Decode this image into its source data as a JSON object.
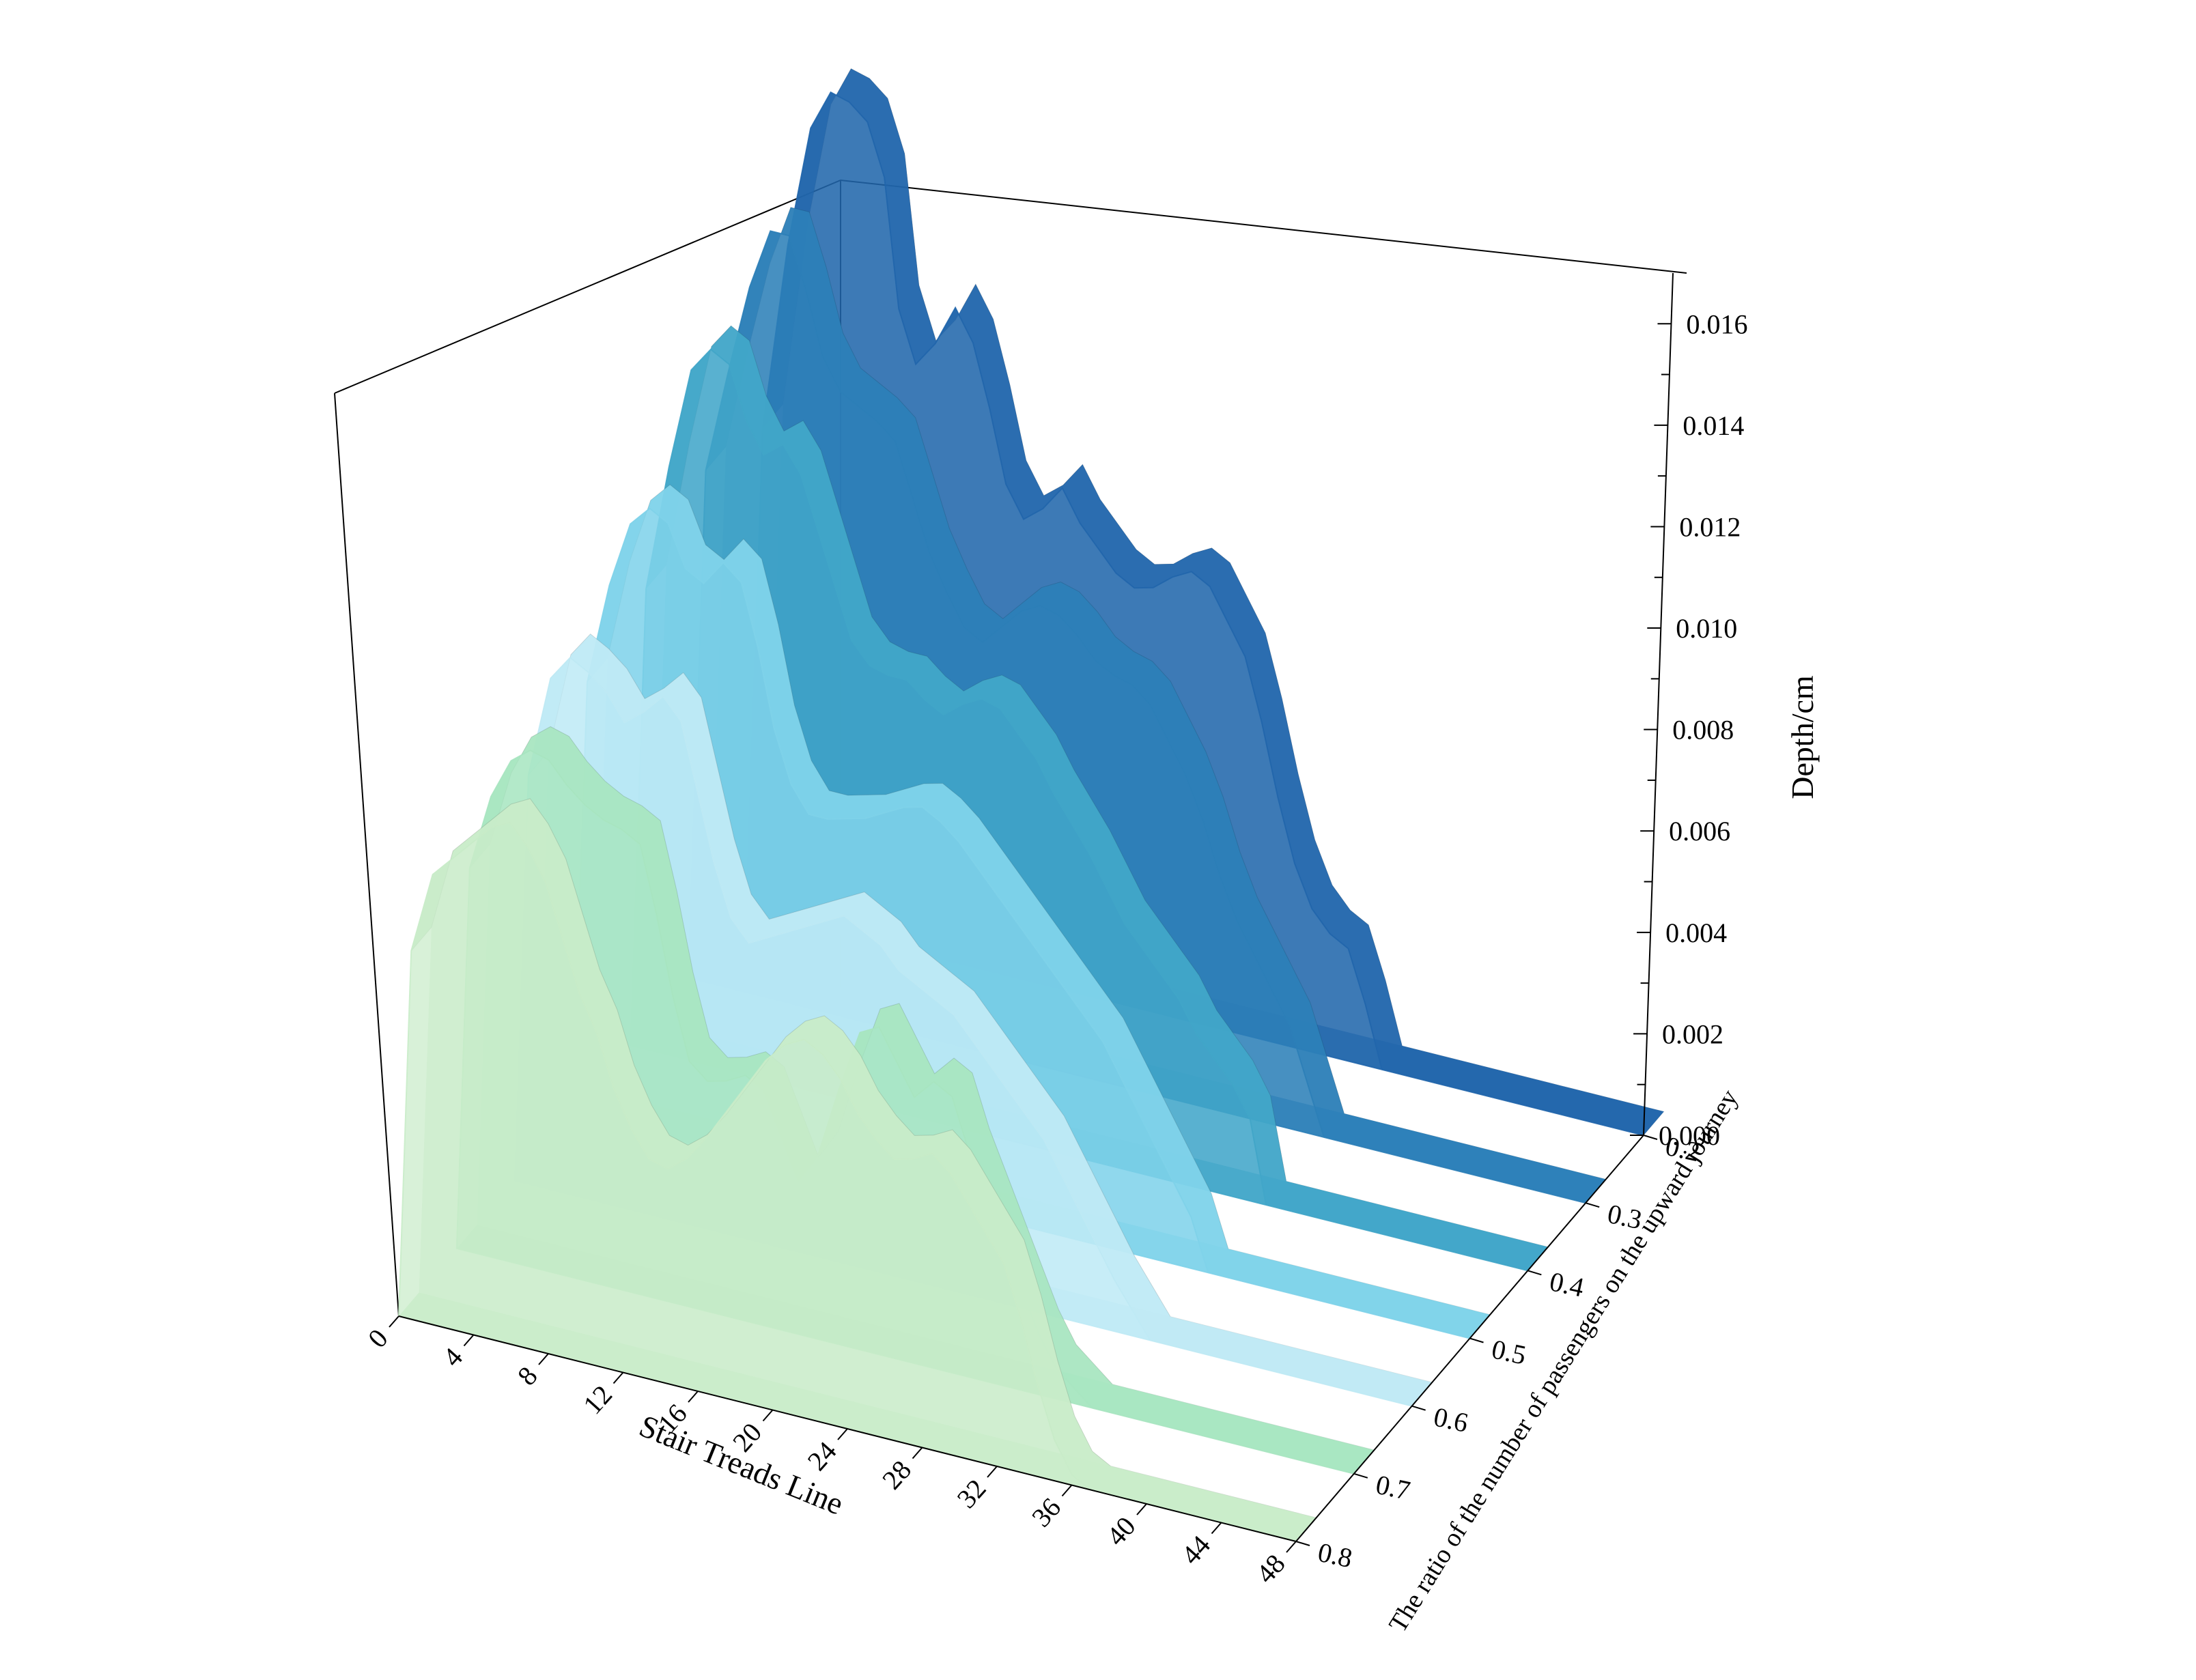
{
  "chart_data": {
    "type": "area",
    "projection": "3d",
    "zlabel": "Depth/cm",
    "xlabel": "Stair Treads Line",
    "ylabel": "The ratio of the number of passengers on the upward journey",
    "x_ticks": [
      0,
      4,
      8,
      12,
      16,
      20,
      24,
      28,
      32,
      36,
      40,
      44,
      48
    ],
    "y_ticks": [
      "0.2",
      "0.3",
      "0.4",
      "0.5",
      "0.6",
      "0.7",
      "0.8"
    ],
    "z_ticks": [
      "0.000",
      "0.002",
      "0.004",
      "0.006",
      "0.008",
      "0.010",
      "0.012",
      "0.014",
      "0.016"
    ],
    "xlim": [
      0,
      48
    ],
    "zlim": [
      0,
      0.017
    ],
    "grid": false,
    "legend": "none",
    "x": [
      0,
      1,
      2,
      3,
      4,
      5,
      6,
      7,
      8,
      9,
      10,
      11,
      12,
      13,
      14,
      15,
      16,
      17,
      18,
      19,
      20,
      21,
      22,
      23,
      24,
      25,
      26,
      27,
      28,
      29,
      30,
      31,
      32,
      33,
      34,
      35,
      36,
      37,
      38,
      39,
      40,
      41,
      42,
      43,
      44,
      45,
      46,
      47,
      48
    ],
    "series": [
      {
        "y": "0.2",
        "color": "#2166ac",
        "values": [
          0.0095,
          0.0132,
          0.0156,
          0.0164,
          0.0163,
          0.016,
          0.015,
          0.0125,
          0.0115,
          0.012,
          0.0128,
          0.0122,
          0.011,
          0.0096,
          0.009,
          0.0093,
          0.0098,
          0.0092,
          0.0088,
          0.0084,
          0.0082,
          0.0083,
          0.0086,
          0.0088,
          0.0086,
          0.008,
          0.0074,
          0.0062,
          0.0048,
          0.0036,
          0.0028,
          0.0024,
          0.0022,
          0.0012,
          0.0,
          0.0,
          0.0,
          0.0,
          0.0,
          0.0,
          0.0,
          0.0,
          0.0,
          0.0,
          0.0,
          0.0,
          0.0,
          0.0,
          0.0
        ]
      },
      {
        "y": "0.3",
        "color": "#2c7fb8",
        "values": [
          0.01,
          0.012,
          0.0138,
          0.015,
          0.015,
          0.014,
          0.0128,
          0.0122,
          0.012,
          0.0118,
          0.0115,
          0.0105,
          0.0095,
          0.0088,
          0.0082,
          0.008,
          0.0084,
          0.0088,
          0.009,
          0.0089,
          0.0086,
          0.0082,
          0.008,
          0.0079,
          0.0076,
          0.007,
          0.0064,
          0.0056,
          0.0046,
          0.0038,
          0.0032,
          0.0026,
          0.002,
          0.001,
          0.0,
          0.0,
          0.0,
          0.0,
          0.0,
          0.0,
          0.0,
          0.0,
          0.0,
          0.0,
          0.0,
          0.0,
          0.0,
          0.0,
          0.0
        ]
      },
      {
        "y": "0.4",
        "color": "#41a6c9",
        "values": [
          0.009,
          0.0115,
          0.0135,
          0.014,
          0.0138,
          0.0128,
          0.0122,
          0.0125,
          0.012,
          0.011,
          0.01,
          0.009,
          0.0086,
          0.0085,
          0.0085,
          0.0082,
          0.008,
          0.0083,
          0.0085,
          0.0084,
          0.008,
          0.0076,
          0.007,
          0.0065,
          0.006,
          0.0054,
          0.0048,
          0.0044,
          0.004,
          0.0036,
          0.003,
          0.0026,
          0.0022,
          0.0016,
          0.0,
          0.0,
          0.0,
          0.0,
          0.0,
          0.0,
          0.0,
          0.0,
          0.0,
          0.0,
          0.0,
          0.0,
          0.0,
          0.0,
          0.0
        ]
      },
      {
        "y": "0.5",
        "color": "#7fd3ea",
        "values": [
          0.0085,
          0.0105,
          0.0118,
          0.0122,
          0.012,
          0.0112,
          0.011,
          0.0115,
          0.0112,
          0.01,
          0.0085,
          0.0075,
          0.007,
          0.007,
          0.0071,
          0.0072,
          0.0074,
          0.0076,
          0.0077,
          0.0075,
          0.0072,
          0.0068,
          0.0064,
          0.006,
          0.0056,
          0.0052,
          0.0048,
          0.0044,
          0.004,
          0.0034,
          0.0028,
          0.0022,
          0.0016,
          0.001,
          0.0,
          0.0,
          0.0,
          0.0,
          0.0,
          0.0,
          0.0,
          0.0,
          0.0,
          0.0,
          0.0,
          0.0,
          0.0,
          0.0,
          0.0
        ]
      },
      {
        "y": "0.6",
        "color": "#bfeaf5",
        "values": [
          0.008,
          0.01,
          0.0105,
          0.0103,
          0.01,
          0.0095,
          0.0098,
          0.0102,
          0.0098,
          0.0085,
          0.0072,
          0.0062,
          0.0058,
          0.006,
          0.0062,
          0.0064,
          0.0066,
          0.0068,
          0.0066,
          0.0064,
          0.006,
          0.0058,
          0.0056,
          0.0054,
          0.005,
          0.0046,
          0.0042,
          0.0038,
          0.0034,
          0.0028,
          0.0022,
          0.0016,
          0.001,
          0.0005,
          0.0,
          0.0,
          0.0,
          0.0,
          0.0,
          0.0,
          0.0,
          0.0,
          0.0,
          0.0,
          0.0,
          0.0,
          0.0,
          0.0,
          0.0
        ]
      },
      {
        "y": "0.7",
        "color": "#a8e6c1",
        "values": [
          0.0075,
          0.009,
          0.0098,
          0.0101,
          0.01,
          0.0096,
          0.0093,
          0.0091,
          0.009,
          0.0088,
          0.0075,
          0.006,
          0.0048,
          0.0045,
          0.0046,
          0.0048,
          0.0046,
          0.0038,
          0.003,
          0.0036,
          0.005,
          0.0062,
          0.0064,
          0.0058,
          0.0052,
          0.0056,
          0.0054,
          0.0044,
          0.0036,
          0.0028,
          0.002,
          0.0012,
          0.0006,
          0.0003,
          0.0,
          0.0,
          0.0,
          0.0,
          0.0,
          0.0,
          0.0,
          0.0,
          0.0,
          0.0,
          0.0,
          0.0,
          0.0,
          0.0,
          0.0
        ]
      },
      {
        "y": "0.8",
        "color": "#c9ecc9",
        "values": [
          0.0072,
          0.0088,
          0.0092,
          0.0096,
          0.01,
          0.0102,
          0.0098,
          0.0092,
          0.0082,
          0.0072,
          0.0065,
          0.0055,
          0.0048,
          0.0043,
          0.0042,
          0.0045,
          0.005,
          0.0056,
          0.0062,
          0.0068,
          0.0072,
          0.0074,
          0.0072,
          0.0068,
          0.0062,
          0.0058,
          0.0055,
          0.0056,
          0.0058,
          0.0055,
          0.005,
          0.0045,
          0.004,
          0.003,
          0.0018,
          0.0008,
          0.0002,
          0.0,
          0.0,
          0.0,
          0.0,
          0.0,
          0.0,
          0.0,
          0.0,
          0.0,
          0.0,
          0.0,
          0.0
        ]
      }
    ]
  }
}
